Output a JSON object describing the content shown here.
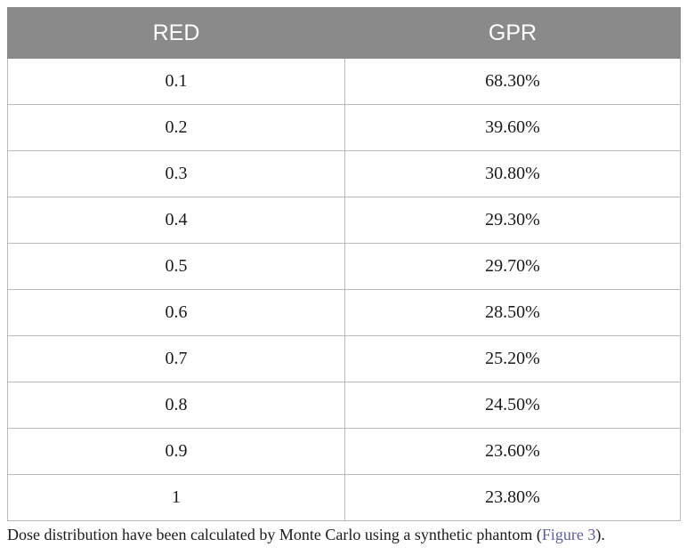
{
  "table": {
    "headers": [
      "RED",
      "GPR"
    ],
    "rows": [
      [
        "0.1",
        "68.30%"
      ],
      [
        "0.2",
        "39.60%"
      ],
      [
        "0.3",
        "30.80%"
      ],
      [
        "0.4",
        "29.30%"
      ],
      [
        "0.5",
        "29.70%"
      ],
      [
        "0.6",
        "28.50%"
      ],
      [
        "0.7",
        "25.20%"
      ],
      [
        "0.8",
        "24.50%"
      ],
      [
        "0.9",
        "23.60%"
      ],
      [
        "1",
        "23.80%"
      ]
    ]
  },
  "caption": {
    "text_before": "Dose distribution have been calculated by Monte Carlo using a synthetic phantom (",
    "link": "Figure 3",
    "text_after": ")."
  },
  "colors": {
    "header_bg": "#8a8a8a",
    "header_text": "#ffffff",
    "link": "#5b5bb0"
  }
}
